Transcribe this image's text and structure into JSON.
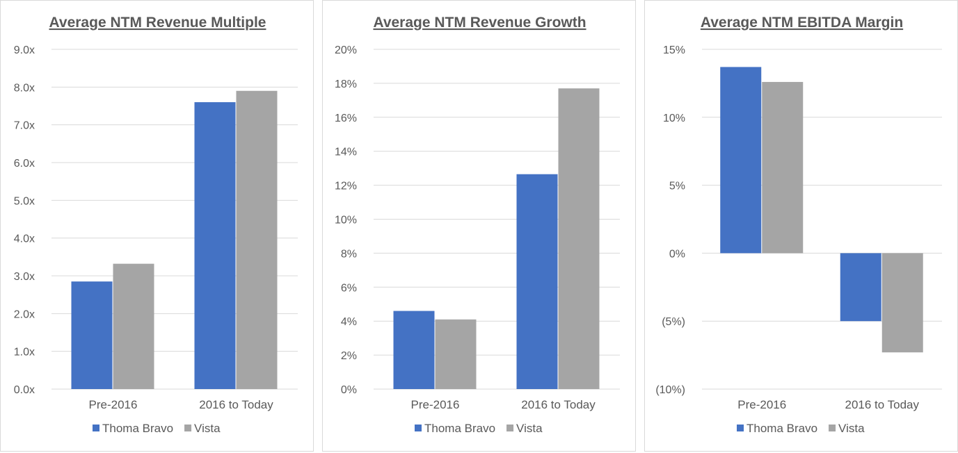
{
  "colors": {
    "thoma_bravo": "#4472c4",
    "vista": "#a5a5a5"
  },
  "chart_data": [
    {
      "type": "bar",
      "title": "Average NTM Revenue Multiple",
      "categories": [
        "Pre-2016",
        "2016 to Today"
      ],
      "series": [
        {
          "name": "Thoma Bravo",
          "values": [
            2.85,
            7.6
          ]
        },
        {
          "name": "Vista",
          "values": [
            3.32,
            7.9
          ]
        }
      ],
      "ylim": [
        0,
        9
      ],
      "ticks": [
        {
          "value": 9,
          "label": "9.0x"
        },
        {
          "value": 8,
          "label": "8.0x"
        },
        {
          "value": 7,
          "label": "7.0x"
        },
        {
          "value": 6,
          "label": "6.0x"
        },
        {
          "value": 5,
          "label": "5.0x"
        },
        {
          "value": 4,
          "label": "4.0x"
        },
        {
          "value": 3,
          "label": "3.0x"
        },
        {
          "value": 2,
          "label": "2.0x"
        },
        {
          "value": 1,
          "label": "1.0x"
        },
        {
          "value": 0,
          "label": "0.0x"
        }
      ],
      "grid": true,
      "legend_position": "bottom"
    },
    {
      "type": "bar",
      "title": "Average NTM Revenue Growth",
      "categories": [
        "Pre-2016",
        "2016 to Today"
      ],
      "series": [
        {
          "name": "Thoma Bravo",
          "values": [
            4.6,
            12.65
          ]
        },
        {
          "name": "Vista",
          "values": [
            4.1,
            17.7
          ]
        }
      ],
      "ylim": [
        0,
        20
      ],
      "ticks": [
        {
          "value": 20,
          "label": "20%"
        },
        {
          "value": 18,
          "label": "18%"
        },
        {
          "value": 16,
          "label": "16%"
        },
        {
          "value": 14,
          "label": "14%"
        },
        {
          "value": 12,
          "label": "12%"
        },
        {
          "value": 10,
          "label": "10%"
        },
        {
          "value": 8,
          "label": "8%"
        },
        {
          "value": 6,
          "label": "6%"
        },
        {
          "value": 4,
          "label": "4%"
        },
        {
          "value": 2,
          "label": "2%"
        },
        {
          "value": 0,
          "label": "0%"
        }
      ],
      "grid": true,
      "legend_position": "bottom"
    },
    {
      "type": "bar",
      "title": "Average NTM EBITDA Margin",
      "categories": [
        "Pre-2016",
        "2016 to Today"
      ],
      "series": [
        {
          "name": "Thoma Bravo",
          "values": [
            13.7,
            -5.0
          ]
        },
        {
          "name": "Vista",
          "values": [
            12.6,
            -7.3
          ]
        }
      ],
      "ylim": [
        -10,
        15
      ],
      "ticks": [
        {
          "value": 15,
          "label": "15%"
        },
        {
          "value": 10,
          "label": "10%"
        },
        {
          "value": 5,
          "label": "5%"
        },
        {
          "value": 0,
          "label": "0%"
        },
        {
          "value": -5,
          "label": "(5%)"
        },
        {
          "value": -10,
          "label": "(10%)"
        }
      ],
      "grid": true,
      "legend_position": "bottom"
    }
  ]
}
